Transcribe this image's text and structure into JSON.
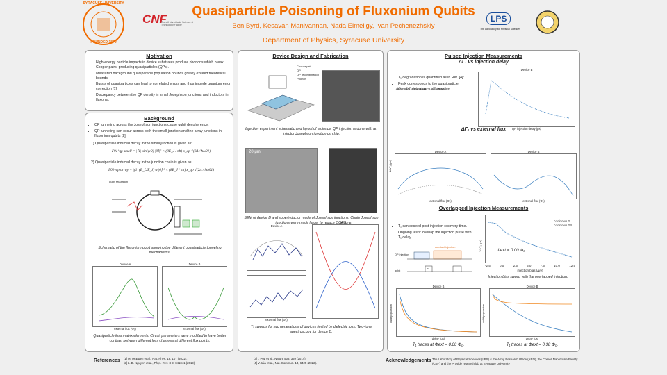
{
  "header": {
    "title": "Quasiparticle Poisoning of Fluxonium Qubits",
    "authors": "Ben Byrd, Kesavan Manivannan, Nada Elmeligy, Ivan Pechenezhskiy",
    "department": "Department of Physics, Syracuse University",
    "logo_su": "SYRACUSE UNIVERSITY",
    "logo_su_founded": "FOUNDED 1870",
    "logo_cnf": "CNF",
    "logo_cnf_sub": "Cornell NanoScale Science & Technology Facility",
    "logo_lps": "LPS",
    "logo_lps_sub": "The Laboratory for Physical Sciences"
  },
  "motivation": {
    "heading": "Motivation",
    "bullets": [
      "High-energy particle impacts in device substrates produce phonons which break Cooper pairs, producing quasiparticles (QPs).",
      "Measured background quasiparticle population bounds greatly exceed theoretical bounds.",
      "Bursts of quasiparticles can lead to correlated errors and thus impede quantum error correction [1].",
      "Discrepancy between the QP density in small Josephson junctions and inductors in fluxonia."
    ]
  },
  "background": {
    "heading": "Background",
    "bullets": [
      "QP tunneling across the Josephson junctions cause qubit decoherence.",
      "QP tunneling can occur across both the small junction and the array junctions in fluxonium qubits [2]:"
    ],
    "item1": "1) Quasiparticle induced decay in the small junction is given as:",
    "eq1": "Γ01^qp small = |⟨1| sin(φ/2) |0⟩|² × (8E_J / πħ) x_qp √(2Δ / ħω01)",
    "item2": "2) Quasiparticle induced decay in the junction chain is given as:",
    "eq2": "Γ01^qp array = |⟨1| (E_L/E_J) φ |0⟩|² × (8E_J / πħ) x_qp √(2Δ / ħω01)",
    "circuit_label": "qubit relaxation",
    "caption1": "Schematic of the fluxonium qubit showing the different quasiparticle tunneling mechanisms.",
    "plot_a": "Device A",
    "plot_b": "Device B",
    "plot_xlabel": "external flux (Φ₀)",
    "caption2": "Quasiparticle loss matrix elements. Circuit parameters were modified to have better contrast between different loss channels at different flux points."
  },
  "design": {
    "heading": "Device Design and Fabrication",
    "legend": [
      "Cooper pair",
      "QP",
      "QP recombination",
      "Phonon"
    ],
    "caption1": "Injection experiment schematic and layout of a device. QP injection is done with an injector Josephson junction on chip.",
    "scalebar": "20 μm",
    "caption2": "SEM of device B and superinductor made of Josephson junctions. Chain Josephson junctions were made larger to reduce CQPS.",
    "plot_a": "Device A",
    "plot_b": "Device B",
    "plot_xlabel": "external flux (Φ₀)",
    "caption3": "T₁ sweeps for two generations of devices limited by dielectric loss. Two-tone spectroscopy for device B."
  },
  "pulsed": {
    "heading": "Pulsed Injection Measurements",
    "sub1": "ΔΓ₁ vs injection delay",
    "bullets": [
      "T₁ degradation is quantified as in Ref. [4]:",
      "Peak corresponds to the quasiparticle density reaching a maximum."
    ],
    "eq": "ΔΓ₁ = 1/T₁,injection − 1/T₁,baseline",
    "plot_delay": "Device B",
    "plot_delay_x": "QP injection delay (μs)",
    "sub2": "ΔΓ₁ vs external flux",
    "plot_a": "Device A",
    "plot_b": "Device B",
    "plot_flux_x": "external flux (Φ₀)",
    "plot_flux_y": "1/ΔT₁ (μs)"
  },
  "overlapped": {
    "heading": "Overlapped Injection Measurements",
    "bullets": [
      "T₁ can exceed post-injection recovery time.",
      "Ongoing tests: overlap the injection pulse with T₁ delay."
    ],
    "seq_labels": [
      "QP injection",
      "qubit",
      "π",
      "constant injection"
    ],
    "legend": [
      "cooldown 2",
      "cooldown 2B"
    ],
    "phi": "Φext = 0.00 Φ₀",
    "xlabel": "injection bias (Δ/e)",
    "ylabel": "1/ΔT₁ (μs)",
    "xticks": [
      "-2.5",
      "0.0",
      "2.5",
      "5.0",
      "7.5",
      "10.0",
      "12.5"
    ],
    "caption": "Injection bias sweep with the overlapped injection.",
    "trace_a": "Device B",
    "trace_b": "Device B",
    "trace_xlabel": "delay (μs)",
    "trace_ylabel": "qubit population",
    "caption_a": "T₁ traces at Φext = 0.00 Φ₀.",
    "caption_b": "T₁ traces at Φext = 0.38 Φ₀."
  },
  "references": {
    "heading": "References",
    "items": [
      "[1] M. McEwen et al., Nat. Phys. 18, 107 (2022).",
      "[2] L. B. Nguyen et al., Phys. Rev. X 9, 041041 (2019).",
      "[3] I. Pop et al., Nature 508, 369 (2014).",
      "[4] V. Iaia et al., Nat. Commun. 13, 6425 (2022)."
    ]
  },
  "acknowledgements": {
    "heading": "Acknowledgements",
    "text": "The Laboratory of Physical Sciences (LPS) & the Army Research Office (ARO), the Cornell NanoScale Facility (CNF) and the Provide research lab at Syracuse University"
  }
}
